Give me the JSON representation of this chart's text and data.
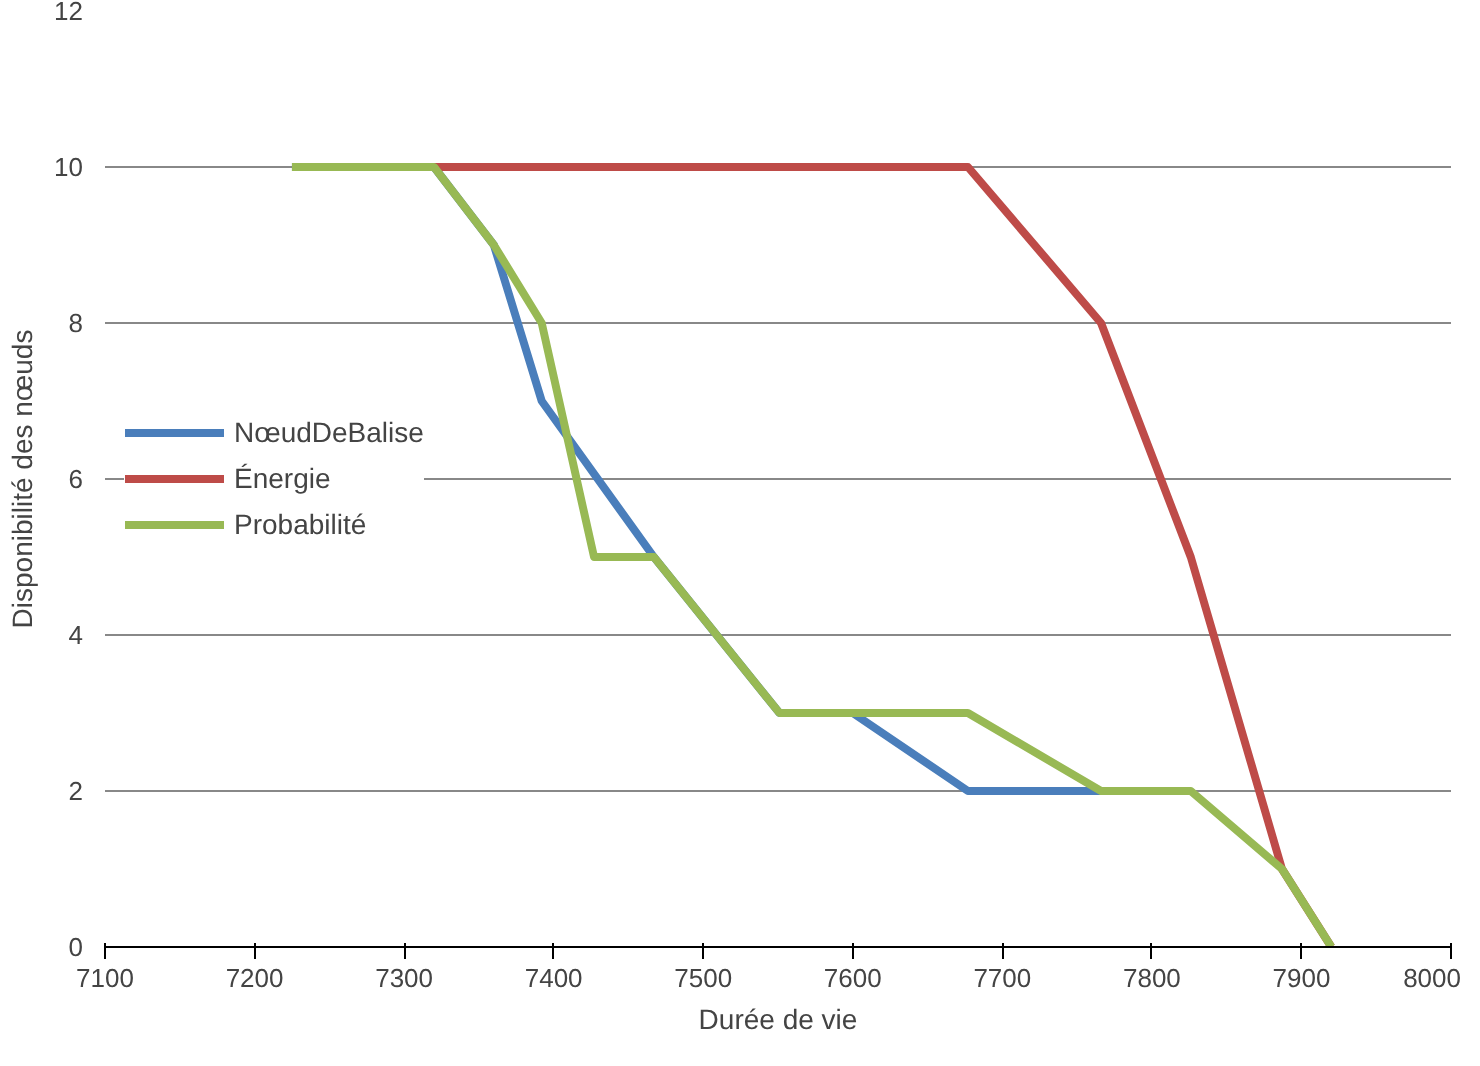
{
  "chart_data": {
    "type": "line",
    "xlabel": "Durée de vie",
    "ylabel": "Disponibilité des nœuds",
    "xlim": [
      7100,
      8000
    ],
    "xticks": [
      7100,
      7200,
      7300,
      7400,
      7500,
      7600,
      7700,
      7800,
      7900,
      8000
    ],
    "ylim": [
      0,
      12
    ],
    "yticks": [
      0,
      2,
      4,
      6,
      8,
      10,
      12
    ],
    "grid": "y",
    "legend": "left",
    "marker": "none",
    "line_style": "solid",
    "series": [
      {
        "name": "NœudDeBalise",
        "color": "#4a7ebb",
        "x": [
          7225,
          7320,
          7360,
          7392,
          7467,
          7551,
          7600,
          7677,
          7766,
          7826
        ],
        "values": [
          10,
          10,
          9,
          7,
          5,
          3,
          3,
          2,
          2,
          2
        ]
      },
      {
        "name": "Énergie",
        "color": "#be4b48",
        "x": [
          7320,
          7677,
          7766,
          7826,
          7887,
          7920
        ],
        "values": [
          10,
          10,
          8,
          5,
          1,
          0
        ]
      },
      {
        "name": "Probabilité",
        "color": "#98b954",
        "x": [
          7225,
          7320,
          7360,
          7392,
          7427,
          7467,
          7551,
          7677,
          7766,
          7826,
          7887,
          7920
        ],
        "values": [
          10,
          10,
          9,
          8,
          5,
          5,
          3,
          3,
          2,
          2,
          1,
          0
        ]
      }
    ]
  }
}
